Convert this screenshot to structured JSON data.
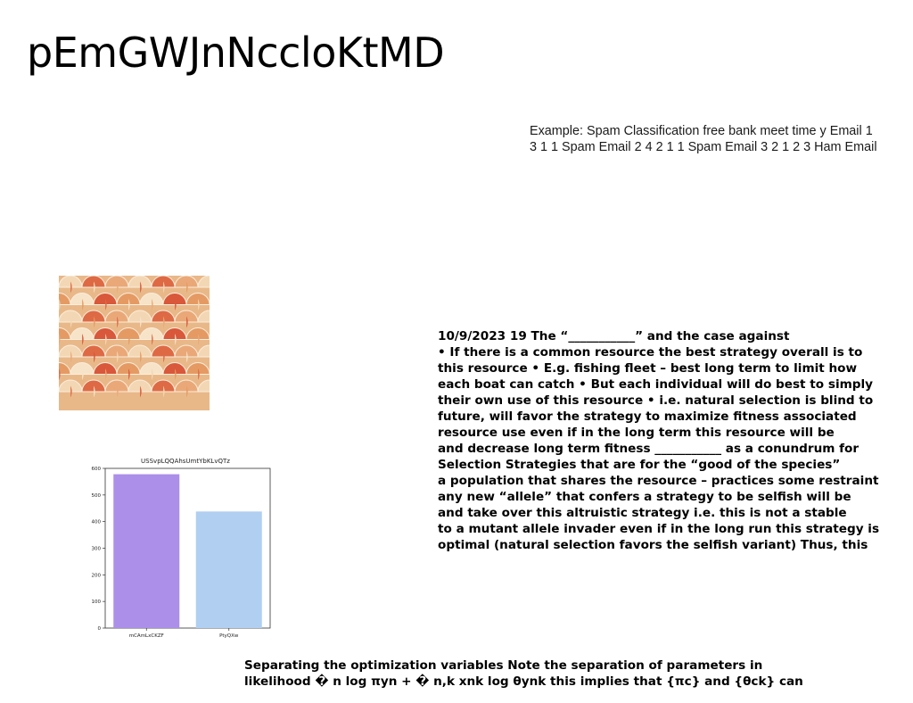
{
  "slide": {
    "title": "pEmGWJnNccloKtMD",
    "example_lines": [
      "Example: Spam Classification free bank meet time y Email 1",
      "3 1 1 Spam Email 2 4 2 1 1 Spam Email 3 2 1 2 3 Ham Email"
    ],
    "body_lines": [
      "10/9/2023 19 The “___________” and the case against",
      "• If there is a common resource the best strategy overall is to",
      "this resource • E.g. fishing fleet – best long term to limit how",
      "each boat can catch • But each individual will do best to simply",
      "their own use of this resource • i.e. natural selection is blind to",
      "future, will favor the strategy to maximize fitness associated",
      "resource use even if in the long term this resource will be",
      "and decrease long term fitness ___________ as a conundrum for",
      "Selection Strategies that are for the “good of the species”",
      "a population that shares the resource – practices some restraint",
      "any new “allele” that confers a strategy to be selfish will be",
      "and take over this altruistic strategy i.e. this is not a stable",
      "to a mutant allele invader even if in the long run this strategy is",
      "optimal (natural selection favors the selfish variant) Thus, this"
    ],
    "bottom_lines": [
      "Separating the optimization variables Note the separation of parameters in",
      "likelihood � n log πyn + � n,k xnk log θynk this implies that {πc} and {θck} can"
    ]
  },
  "chart_data": {
    "type": "bar",
    "title": "USSvpLQQAhsUmtYbKLvQTz",
    "categories": [
      "mCAmLxCKZF",
      "PtyQXw"
    ],
    "values": [
      578,
      438
    ],
    "colors": [
      "#ab8fe9",
      "#b1cff1"
    ],
    "ylim": [
      0,
      600
    ],
    "yticks": [
      0,
      100,
      200,
      300,
      400,
      500,
      600
    ],
    "xlabel": "",
    "ylabel": "",
    "grid": false
  }
}
